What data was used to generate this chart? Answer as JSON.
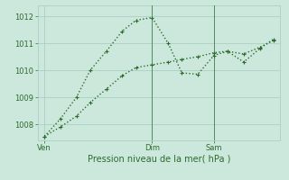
{
  "background_color": "#cce8dc",
  "grid_color": "#aacfc4",
  "line_color": "#2d6b2d",
  "xlabel": "Pression niveau de la mer( hPa )",
  "ylim": [
    1007.4,
    1012.4
  ],
  "yticks": [
    1008,
    1009,
    1010,
    1011,
    1012
  ],
  "xtick_labels": [
    "Ven",
    "Dim",
    "Sam"
  ],
  "xtick_positions": [
    0.0,
    0.47,
    0.74
  ],
  "vline_positions": [
    0.47,
    0.74
  ],
  "series1_x": [
    0.0,
    0.07,
    0.14,
    0.2,
    0.27,
    0.34,
    0.4,
    0.47,
    0.54,
    0.6,
    0.67,
    0.74,
    0.8,
    0.87,
    0.94,
    1.0
  ],
  "series1_y": [
    1007.55,
    1008.2,
    1009.0,
    1010.0,
    1010.7,
    1011.45,
    1011.85,
    1011.95,
    1011.0,
    1009.9,
    1009.85,
    1010.55,
    1010.7,
    1010.3,
    1010.8,
    1011.15
  ],
  "series2_x": [
    0.0,
    0.07,
    0.14,
    0.2,
    0.27,
    0.34,
    0.4,
    0.47,
    0.54,
    0.6,
    0.67,
    0.74,
    0.8,
    0.87,
    0.94,
    1.0
  ],
  "series2_y": [
    1007.55,
    1007.9,
    1008.3,
    1008.8,
    1009.3,
    1009.8,
    1010.1,
    1010.2,
    1010.3,
    1010.4,
    1010.5,
    1010.65,
    1010.7,
    1010.6,
    1010.85,
    1011.1
  ],
  "marker_size": 2.5,
  "line_width": 1.0,
  "title_fontsize": 7,
  "tick_fontsize": 6
}
